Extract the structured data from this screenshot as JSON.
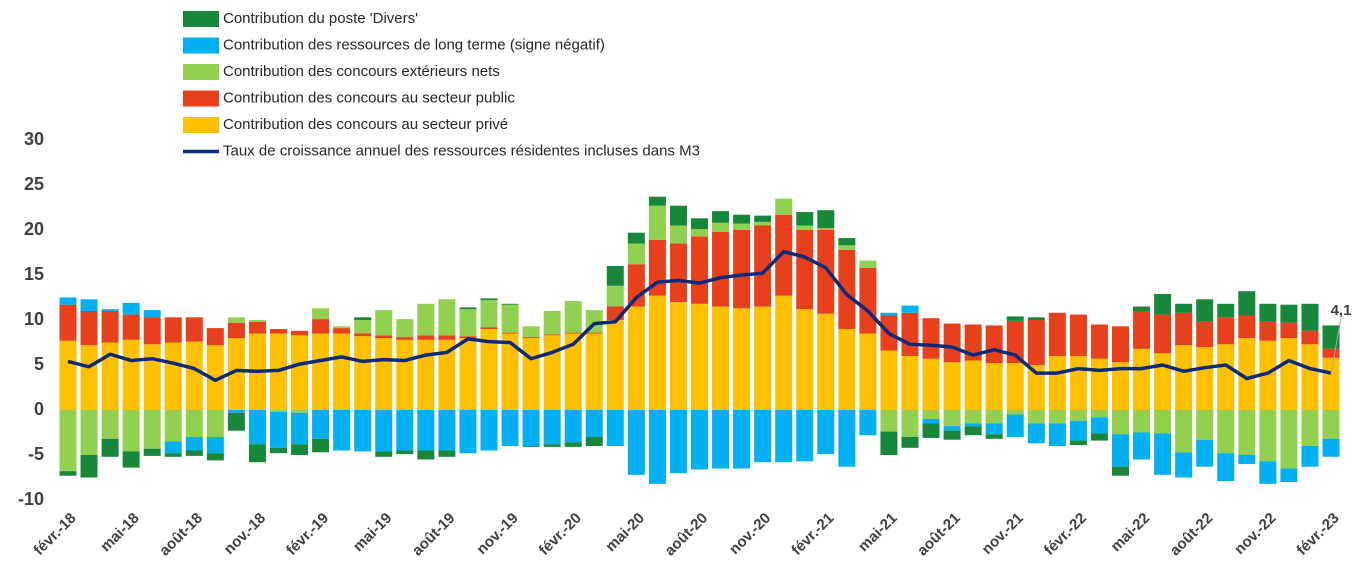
{
  "chart_data": {
    "type": "bar",
    "stacked": true,
    "legend_position": "top",
    "categories": [
      "févr.-18",
      null,
      null,
      "mai-18",
      null,
      null,
      "août-18",
      null,
      null,
      "nov.-18",
      null,
      null,
      "févr.-19",
      null,
      null,
      "mai-19",
      null,
      null,
      "août-19",
      null,
      null,
      "nov.-19",
      null,
      null,
      "févr.-20",
      null,
      null,
      "mai-20",
      null,
      null,
      "août-20",
      null,
      null,
      "nov.-20",
      null,
      null,
      "févr.-21",
      null,
      null,
      "mai-21",
      null,
      null,
      "août-21",
      null,
      null,
      "nov.-21",
      null,
      null,
      "févr.-22",
      null,
      null,
      "mai-22",
      null,
      null,
      "août-22",
      null,
      null,
      "nov.-22",
      null,
      null,
      "févr.-23"
    ],
    "ylim": [
      -10,
      30
    ],
    "yticks": [
      -10,
      -5,
      0,
      5,
      10,
      15,
      20,
      25,
      30
    ],
    "grid": false,
    "series": [
      {
        "name": "Contribution des concours au secteur privé",
        "color": "#ffc000",
        "type": "bar",
        "values": [
          7.7,
          7.2,
          7.5,
          7.8,
          7.3,
          7.5,
          7.6,
          7.2,
          8.0,
          8.5,
          8.5,
          8.3,
          8.5,
          8.5,
          8.2,
          8.0,
          7.8,
          7.8,
          7.8,
          8.0,
          9.0,
          8.5,
          8.0,
          8.3,
          8.5,
          8.5,
          10.0,
          11.5,
          12.7,
          12.0,
          11.8,
          11.5,
          11.3,
          11.5,
          12.7,
          11.2,
          10.7,
          9.0,
          8.5,
          6.6,
          6.0,
          5.7,
          5.3,
          5.5,
          5.2,
          5.2,
          5.0,
          6.0,
          6.0,
          5.7,
          5.3,
          6.8,
          6.3,
          7.2,
          7.0,
          7.3,
          8.0,
          7.7,
          8.0,
          7.3,
          5.8
        ]
      },
      {
        "name": "Contribution des concours au secteur public",
        "color": "#e8401c",
        "type": "bar",
        "values": [
          4.0,
          3.8,
          3.5,
          2.8,
          3.0,
          2.8,
          2.7,
          1.9,
          1.7,
          1.3,
          0.5,
          0.5,
          1.6,
          0.6,
          0.3,
          0.3,
          0.3,
          0.5,
          0.5,
          0.2,
          0.2,
          0.1,
          0.1,
          0.1,
          0.1,
          0.1,
          1.5,
          4.7,
          6.2,
          6.5,
          7.5,
          8.3,
          8.7,
          9.0,
          9.0,
          8.8,
          9.3,
          8.8,
          7.3,
          3.9,
          4.8,
          4.5,
          4.3,
          4.0,
          4.2,
          4.7,
          5.0,
          4.8,
          4.6,
          3.8,
          4.0,
          4.2,
          4.3,
          3.6,
          2.8,
          3.0,
          2.5,
          2.1,
          1.7,
          1.5,
          1.0
        ]
      },
      {
        "name": "Contribution des concours extérieurs nets",
        "color": "#92d050",
        "type": "bar",
        "values": [
          -6.8,
          -5.0,
          -3.2,
          -4.6,
          -4.3,
          -3.5,
          -3.0,
          -3.0,
          0.6,
          0.2,
          -0.2,
          -0.3,
          1.2,
          0.2,
          1.5,
          2.8,
          2.0,
          3.5,
          4.0,
          3.0,
          3.0,
          3.1,
          1.2,
          2.6,
          3.5,
          2.5,
          2.3,
          2.3,
          3.8,
          2.0,
          0.8,
          1.0,
          0.7,
          0.4,
          1.8,
          0.5,
          0.2,
          0.5,
          0.8,
          -2.4,
          -3.0,
          -1.0,
          -1.8,
          -1.5,
          -1.5,
          -0.5,
          -1.5,
          -1.5,
          -1.2,
          -0.8,
          -2.7,
          -2.5,
          -2.6,
          -4.7,
          -3.3,
          -4.8,
          -5.0,
          -5.7,
          -6.5,
          -4.0,
          -3.2
        ]
      },
      {
        "name": "Contribution des ressources de long terme (signe négatif)",
        "color": "#00b0f0",
        "type": "bar",
        "values": [
          0.8,
          1.3,
          0.2,
          1.3,
          0.8,
          -1.3,
          -1.5,
          -1.8,
          -0.3,
          -3.8,
          -4.0,
          -3.5,
          -3.2,
          -4.5,
          -4.6,
          -4.6,
          -4.5,
          -4.5,
          -4.5,
          -4.8,
          -4.5,
          -4.0,
          -4.0,
          -3.8,
          -3.6,
          -3.0,
          -4.0,
          -7.2,
          -8.2,
          -7.0,
          -6.6,
          -6.5,
          -6.5,
          -5.8,
          -5.8,
          -5.7,
          -4.9,
          -6.3,
          -2.8,
          0.3,
          0.8,
          -0.5,
          -0.5,
          -0.3,
          -1.2,
          -2.5,
          -2.2,
          -2.5,
          -2.2,
          -1.8,
          -3.6,
          -3.0,
          -4.6,
          -2.8,
          -3.0,
          -3.1,
          -1.0,
          -2.5,
          -1.5,
          -2.3,
          -2.0
        ]
      },
      {
        "name": "Contribution du poste 'Divers'",
        "color": "#17873a",
        "type": "bar",
        "values": [
          -0.5,
          -2.5,
          -2.0,
          -1.8,
          -0.8,
          -0.4,
          -0.6,
          -0.8,
          -2.0,
          -2.0,
          -0.6,
          -1.2,
          -1.5,
          0.0,
          0.3,
          -0.6,
          -0.4,
          -1.0,
          -0.7,
          0.2,
          0.2,
          0.1,
          -0.1,
          -0.3,
          -0.5,
          -1.0,
          2.2,
          1.2,
          1.0,
          2.2,
          1.2,
          1.3,
          1.0,
          0.7,
          0.0,
          1.5,
          2.0,
          0.8,
          0.0,
          -2.6,
          -1.2,
          -1.6,
          -1.0,
          -1.0,
          -0.5,
          0.5,
          0.3,
          0.0,
          -0.5,
          -0.8,
          -1.0,
          0.5,
          2.3,
          1.0,
          2.5,
          1.5,
          2.7,
          2.0,
          2.0,
          3.0,
          2.6
        ]
      },
      {
        "name": "Taux de croissance annuel des ressources résidentes incluses dans M3",
        "color": "#0d2a7a",
        "type": "line",
        "values": [
          5.4,
          4.8,
          6.2,
          5.5,
          5.7,
          5.2,
          4.6,
          3.3,
          4.4,
          4.3,
          4.4,
          5.1,
          5.5,
          5.9,
          5.4,
          5.6,
          5.5,
          6.1,
          6.4,
          7.9,
          7.6,
          7.5,
          5.7,
          6.4,
          7.3,
          9.6,
          9.8,
          12.5,
          14.2,
          14.4,
          14.1,
          14.7,
          15.0,
          15.2,
          17.6,
          17.0,
          15.8,
          12.8,
          11.0,
          8.5,
          7.3,
          7.2,
          7.0,
          6.1,
          6.7,
          6.1,
          4.1,
          4.1,
          4.6,
          4.4,
          4.6,
          4.6,
          5.0,
          4.3,
          4.7,
          5.0,
          3.5,
          4.1,
          5.5,
          4.6,
          4.1
        ],
        "value_labels": [
          null,
          null,
          null,
          null,
          null,
          null,
          null,
          null,
          null,
          null,
          null,
          null,
          null,
          null,
          null,
          null,
          null,
          null,
          null,
          null,
          null,
          null,
          null,
          null,
          null,
          null,
          null,
          null,
          null,
          null,
          null,
          null,
          null,
          null,
          null,
          null,
          null,
          null,
          null,
          null,
          null,
          null,
          null,
          null,
          null,
          null,
          null,
          null,
          null,
          null,
          null,
          null,
          null,
          null,
          null,
          null,
          null,
          null,
          null,
          null,
          "4,1"
        ]
      }
    ]
  }
}
